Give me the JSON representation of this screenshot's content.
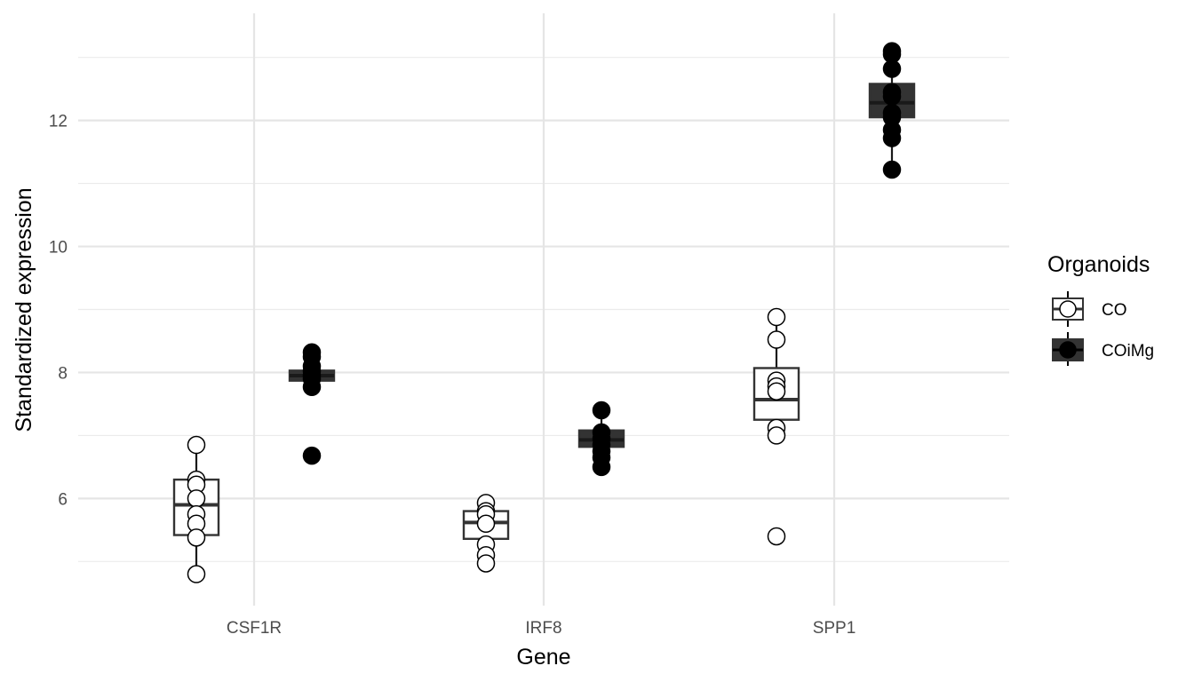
{
  "chart_data": {
    "type": "box",
    "xlabel": "Gene",
    "ylabel": "Standardized expression",
    "categories": [
      "CSF1R",
      "IRF8",
      "SPP1"
    ],
    "ylim": [
      4.3,
      13.7
    ],
    "yticks": [
      6,
      8,
      10,
      12
    ],
    "grid": true,
    "legend": {
      "title": "Organoids",
      "placement": "right",
      "entries": [
        "CO",
        "COiMg"
      ]
    },
    "series": [
      {
        "name": "CO",
        "box_fill": "#ffffff",
        "point_fill": "#ffffff",
        "color": "#000000",
        "boxes": [
          {
            "category": "CSF1R",
            "q1": 5.42,
            "median": 5.9,
            "q3": 6.3,
            "whisker_low": 4.8,
            "whisker_high": 6.85
          },
          {
            "category": "IRF8",
            "q1": 5.36,
            "median": 5.62,
            "q3": 5.8,
            "whisker_low": 4.97,
            "whisker_high": 5.93
          },
          {
            "category": "SPP1",
            "q1": 7.25,
            "median": 7.57,
            "q3": 8.07,
            "whisker_low": 7.0,
            "whisker_high": 8.88
          }
        ],
        "points": [
          {
            "category": "CSF1R",
            "values": [
              6.85,
              6.3,
              6.22,
              6.0,
              5.75,
              5.6,
              5.38,
              4.8
            ]
          },
          {
            "category": "IRF8",
            "values": [
              5.93,
              5.8,
              5.75,
              5.6,
              5.27,
              5.1,
              4.97
            ]
          },
          {
            "category": "SPP1",
            "values": [
              8.88,
              8.52,
              7.87,
              7.78,
              7.7,
              7.12,
              7.0,
              5.4
            ]
          }
        ]
      },
      {
        "name": "COiMg",
        "box_fill": "#333333",
        "point_fill": "#000000",
        "color": "#000000",
        "boxes": [
          {
            "category": "CSF1R",
            "q1": 7.87,
            "median": 7.95,
            "q3": 8.03,
            "whisker_low": 7.77,
            "whisker_high": 8.32
          },
          {
            "category": "IRF8",
            "q1": 6.82,
            "median": 6.93,
            "q3": 7.08,
            "whisker_low": 6.5,
            "whisker_high": 7.4
          },
          {
            "category": "SPP1",
            "q1": 12.05,
            "median": 12.28,
            "q3": 12.58,
            "whisker_low": 11.22,
            "whisker_high": 13.1
          }
        ],
        "points": [
          {
            "category": "CSF1R",
            "values": [
              8.32,
              8.25,
              8.1,
              8.02,
              7.95,
              7.9,
              7.77,
              6.68
            ]
          },
          {
            "category": "IRF8",
            "values": [
              7.4,
              7.05,
              6.95,
              6.85,
              6.75,
              6.65,
              6.5
            ]
          },
          {
            "category": "SPP1",
            "values": [
              13.1,
              13.05,
              12.82,
              12.45,
              12.38,
              12.12,
              12.05,
              11.85,
              11.72,
              11.22
            ]
          }
        ]
      }
    ]
  }
}
